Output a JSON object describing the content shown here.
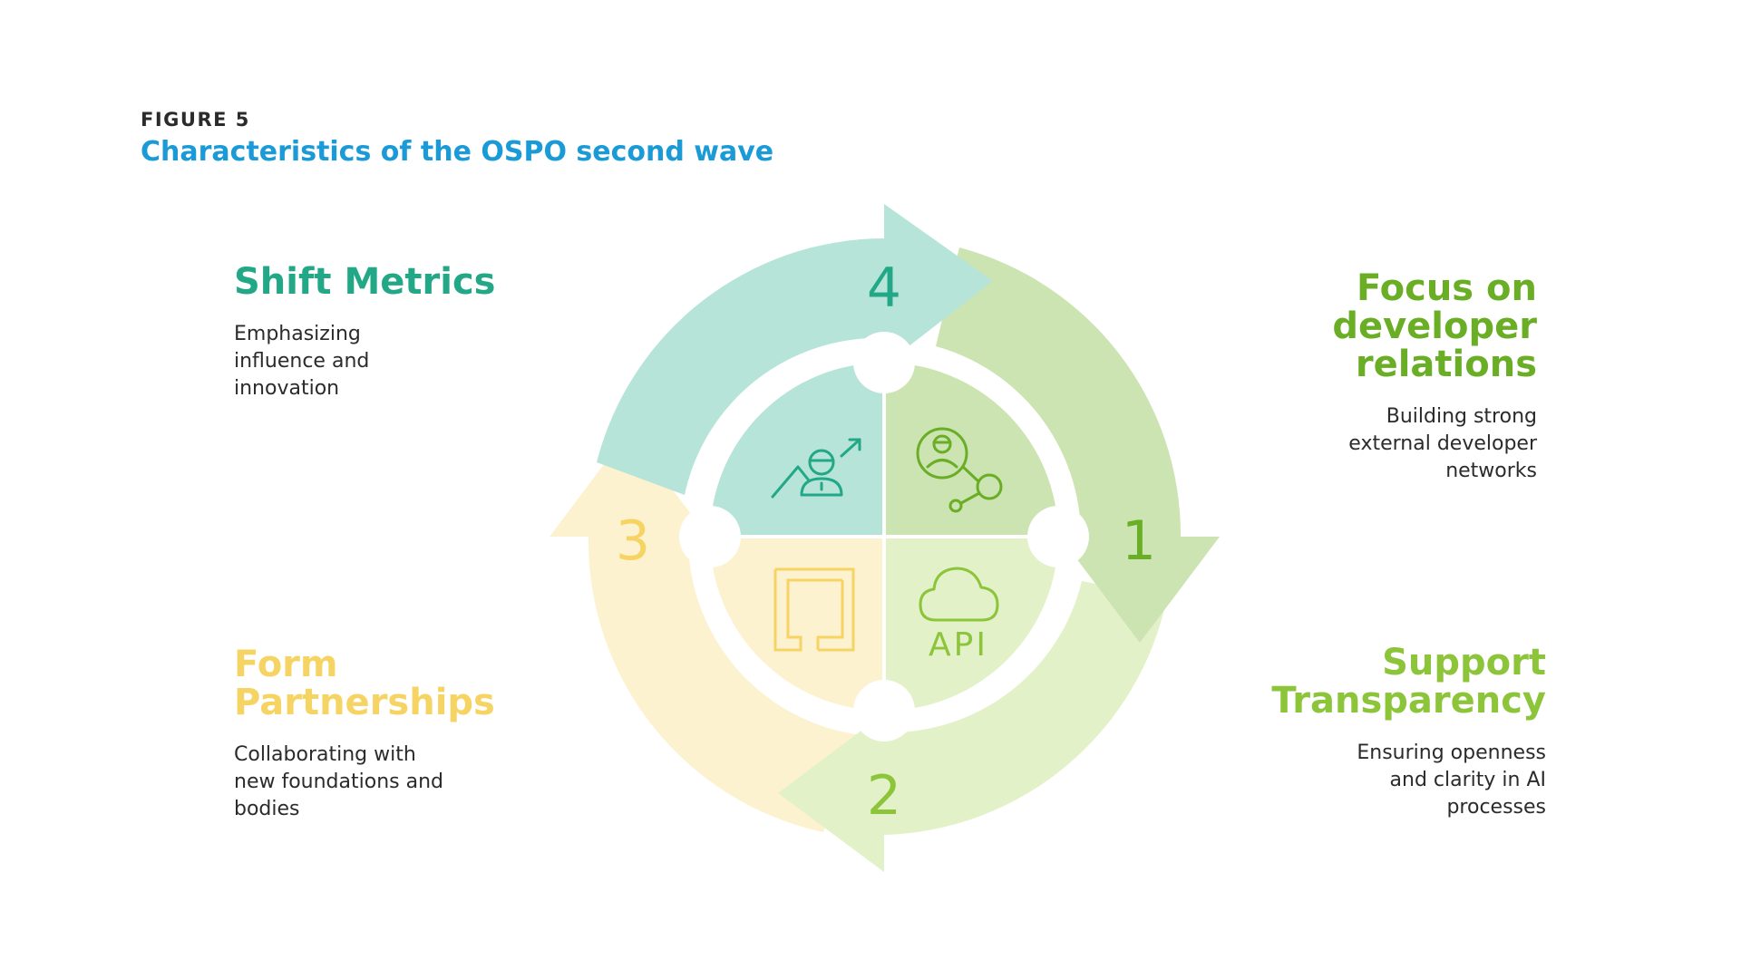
{
  "figure": {
    "label": "FIGURE 5",
    "title": "Characteristics of the OSPO second wave"
  },
  "steps": [
    {
      "number": "1",
      "title": "Focus on developer relations",
      "description": "Building strong external developer networks",
      "color": "#6aae25",
      "arrow_color": "#cce3b2",
      "icon": "developer-network-icon"
    },
    {
      "number": "2",
      "title": "Support Transparency",
      "description": "Ensuring openness and clarity in AI processes",
      "color": "#8cc43a",
      "arrow_color": "#e3f1c8",
      "icon": "api-cloud-icon",
      "icon_text": "API"
    },
    {
      "number": "3",
      "title": "Form Partnerships",
      "description": "Collaborating with new foundations and bodies",
      "color": "#f6d463",
      "arrow_color": "#fdf2cf",
      "icon": "partnership-blocks-icon"
    },
    {
      "number": "4",
      "title": "Shift Metrics",
      "description": "Emphasizing influence and innovation",
      "color": "#22a886",
      "arrow_color": "#b6e4d8",
      "icon": "growth-person-icon"
    }
  ]
}
